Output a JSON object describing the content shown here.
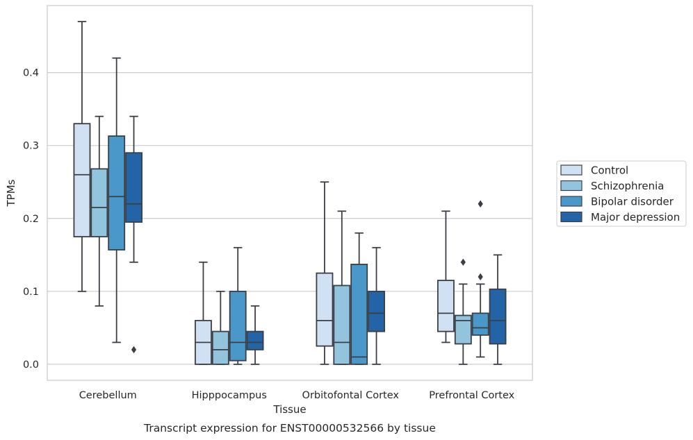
{
  "chart_data": {
    "type": "box",
    "title": "",
    "caption": "Transcript expression for ENST00000532566 by tissue",
    "xlabel": "Tissue",
    "ylabel": "TPMs",
    "ylim": [
      -0.022,
      0.492
    ],
    "yticks": [
      0.0,
      0.1,
      0.2,
      0.3,
      0.4
    ],
    "ytick_labels": [
      "0.0",
      "0.1",
      "0.2",
      "0.3",
      "0.4"
    ],
    "grid": "horizontal",
    "legend_position": "right",
    "categories": [
      "Cerebellum",
      "Hipppocampus",
      "Orbitofontal Cortex",
      "Prefrontal Cortex"
    ],
    "series": [
      {
        "name": "Control",
        "color": "#cfe1f2",
        "boxes": [
          {
            "whislo": 0.1,
            "q1": 0.175,
            "med": 0.26,
            "q3": 0.33,
            "whishi": 0.47,
            "fliers": []
          },
          {
            "whislo": 0.0,
            "q1": 0.0,
            "med": 0.03,
            "q3": 0.06,
            "whishi": 0.14,
            "fliers": []
          },
          {
            "whislo": 0.0,
            "q1": 0.025,
            "med": 0.06,
            "q3": 0.125,
            "whishi": 0.25,
            "fliers": []
          },
          {
            "whislo": 0.03,
            "q1": 0.045,
            "med": 0.07,
            "q3": 0.115,
            "whishi": 0.21,
            "fliers": []
          }
        ]
      },
      {
        "name": "Schizophrenia",
        "color": "#93c4de",
        "boxes": [
          {
            "whislo": 0.08,
            "q1": 0.175,
            "med": 0.215,
            "q3": 0.268,
            "whishi": 0.34,
            "fliers": []
          },
          {
            "whislo": 0.0,
            "q1": 0.0,
            "med": 0.02,
            "q3": 0.045,
            "whishi": 0.1,
            "fliers": []
          },
          {
            "whislo": 0.0,
            "q1": 0.0,
            "med": 0.03,
            "q3": 0.108,
            "whishi": 0.21,
            "fliers": []
          },
          {
            "whislo": 0.0,
            "q1": 0.028,
            "med": 0.06,
            "q3": 0.067,
            "whishi": 0.11,
            "fliers": [
              0.14
            ]
          }
        ]
      },
      {
        "name": "Bipolar disorder",
        "color": "#4a98c9",
        "boxes": [
          {
            "whislo": 0.03,
            "q1": 0.157,
            "med": 0.23,
            "q3": 0.313,
            "whishi": 0.42,
            "fliers": []
          },
          {
            "whislo": 0.0,
            "q1": 0.005,
            "med": 0.03,
            "q3": 0.1,
            "whishi": 0.16,
            "fliers": []
          },
          {
            "whislo": 0.0,
            "q1": 0.0,
            "med": 0.01,
            "q3": 0.137,
            "whishi": 0.18,
            "fliers": []
          },
          {
            "whislo": 0.01,
            "q1": 0.04,
            "med": 0.05,
            "q3": 0.07,
            "whishi": 0.11,
            "fliers": [
              0.12,
              0.22
            ]
          }
        ]
      },
      {
        "name": "Major depression",
        "color": "#2264a5",
        "boxes": [
          {
            "whislo": 0.14,
            "q1": 0.195,
            "med": 0.22,
            "q3": 0.29,
            "whishi": 0.34,
            "fliers": [
              0.02
            ]
          },
          {
            "whislo": 0.0,
            "q1": 0.02,
            "med": 0.03,
            "q3": 0.045,
            "whishi": 0.08,
            "fliers": []
          },
          {
            "whislo": 0.0,
            "q1": 0.045,
            "med": 0.07,
            "q3": 0.1,
            "whishi": 0.16,
            "fliers": []
          },
          {
            "whislo": 0.0,
            "q1": 0.028,
            "med": 0.06,
            "q3": 0.103,
            "whishi": 0.15,
            "fliers": []
          }
        ]
      }
    ]
  },
  "colors": {
    "box_edge": "#3b3f45",
    "grid": "#cccccc",
    "frame": "#cccccc",
    "text": "#262626"
  }
}
